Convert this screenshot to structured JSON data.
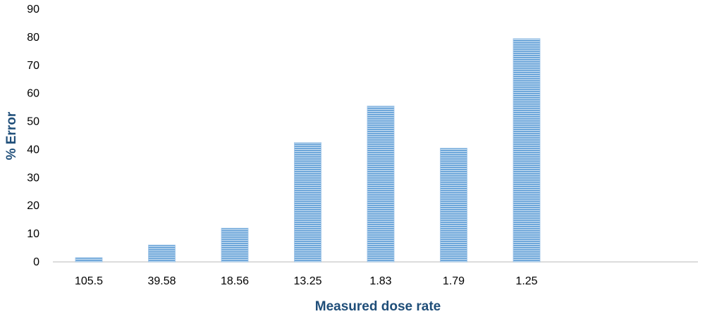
{
  "chart_data": {
    "type": "bar",
    "categories": [
      "105.5",
      "39.58",
      "18.56",
      "13.25",
      "1.83",
      "1.79",
      "1.25"
    ],
    "values": [
      1.5,
      6,
      12,
      42.5,
      55.5,
      40.5,
      79.5
    ],
    "xlabel": "Measured dose rate",
    "ylabel": "% Error",
    "ylim": [
      0,
      90
    ],
    "yticks": [
      "0",
      "10",
      "20",
      "30",
      "40",
      "50",
      "60",
      "70",
      "80",
      "90"
    ],
    "grid": false,
    "legend": "none",
    "colors": {
      "bar_fill": "#9dc3e6",
      "bar_stripe": "#6fa8dc",
      "axis_title": "#1f4e79",
      "axis_line": "#d0d0d0"
    }
  }
}
